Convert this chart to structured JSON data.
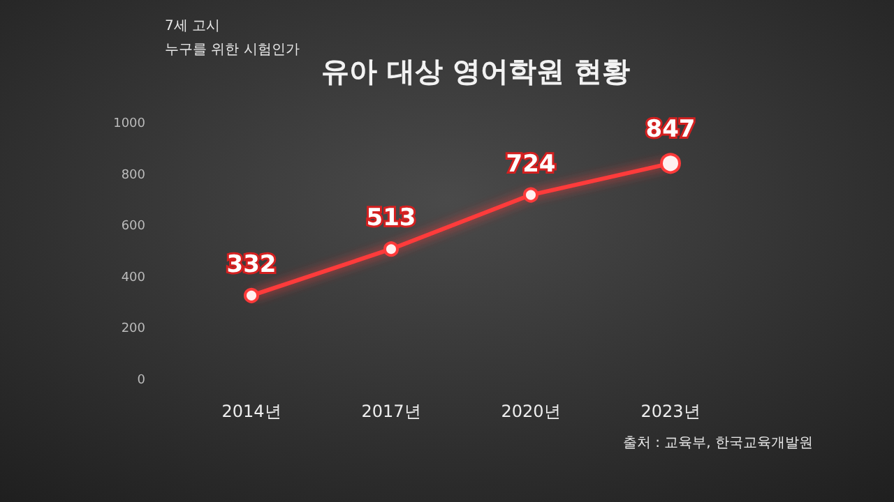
{
  "chart_data": {
    "type": "line",
    "title": "유아 대상 영어학원 현황",
    "categories": [
      "2014년",
      "2017년",
      "2020년",
      "2023년"
    ],
    "series": [
      {
        "color": "#ff3a3a",
        "values": [
          332,
          513,
          724,
          847
        ]
      }
    ],
    "ylim": [
      0,
      1000
    ],
    "yticks": [
      0,
      200,
      400,
      600,
      800,
      1000
    ],
    "grid": false,
    "marker": "circle",
    "line_style": "solid",
    "data_labels": true,
    "annotations": [
      "7세 고시",
      "누구를 위한 시험인가",
      "출처 : 교육부, 한국교육개발원"
    ]
  }
}
